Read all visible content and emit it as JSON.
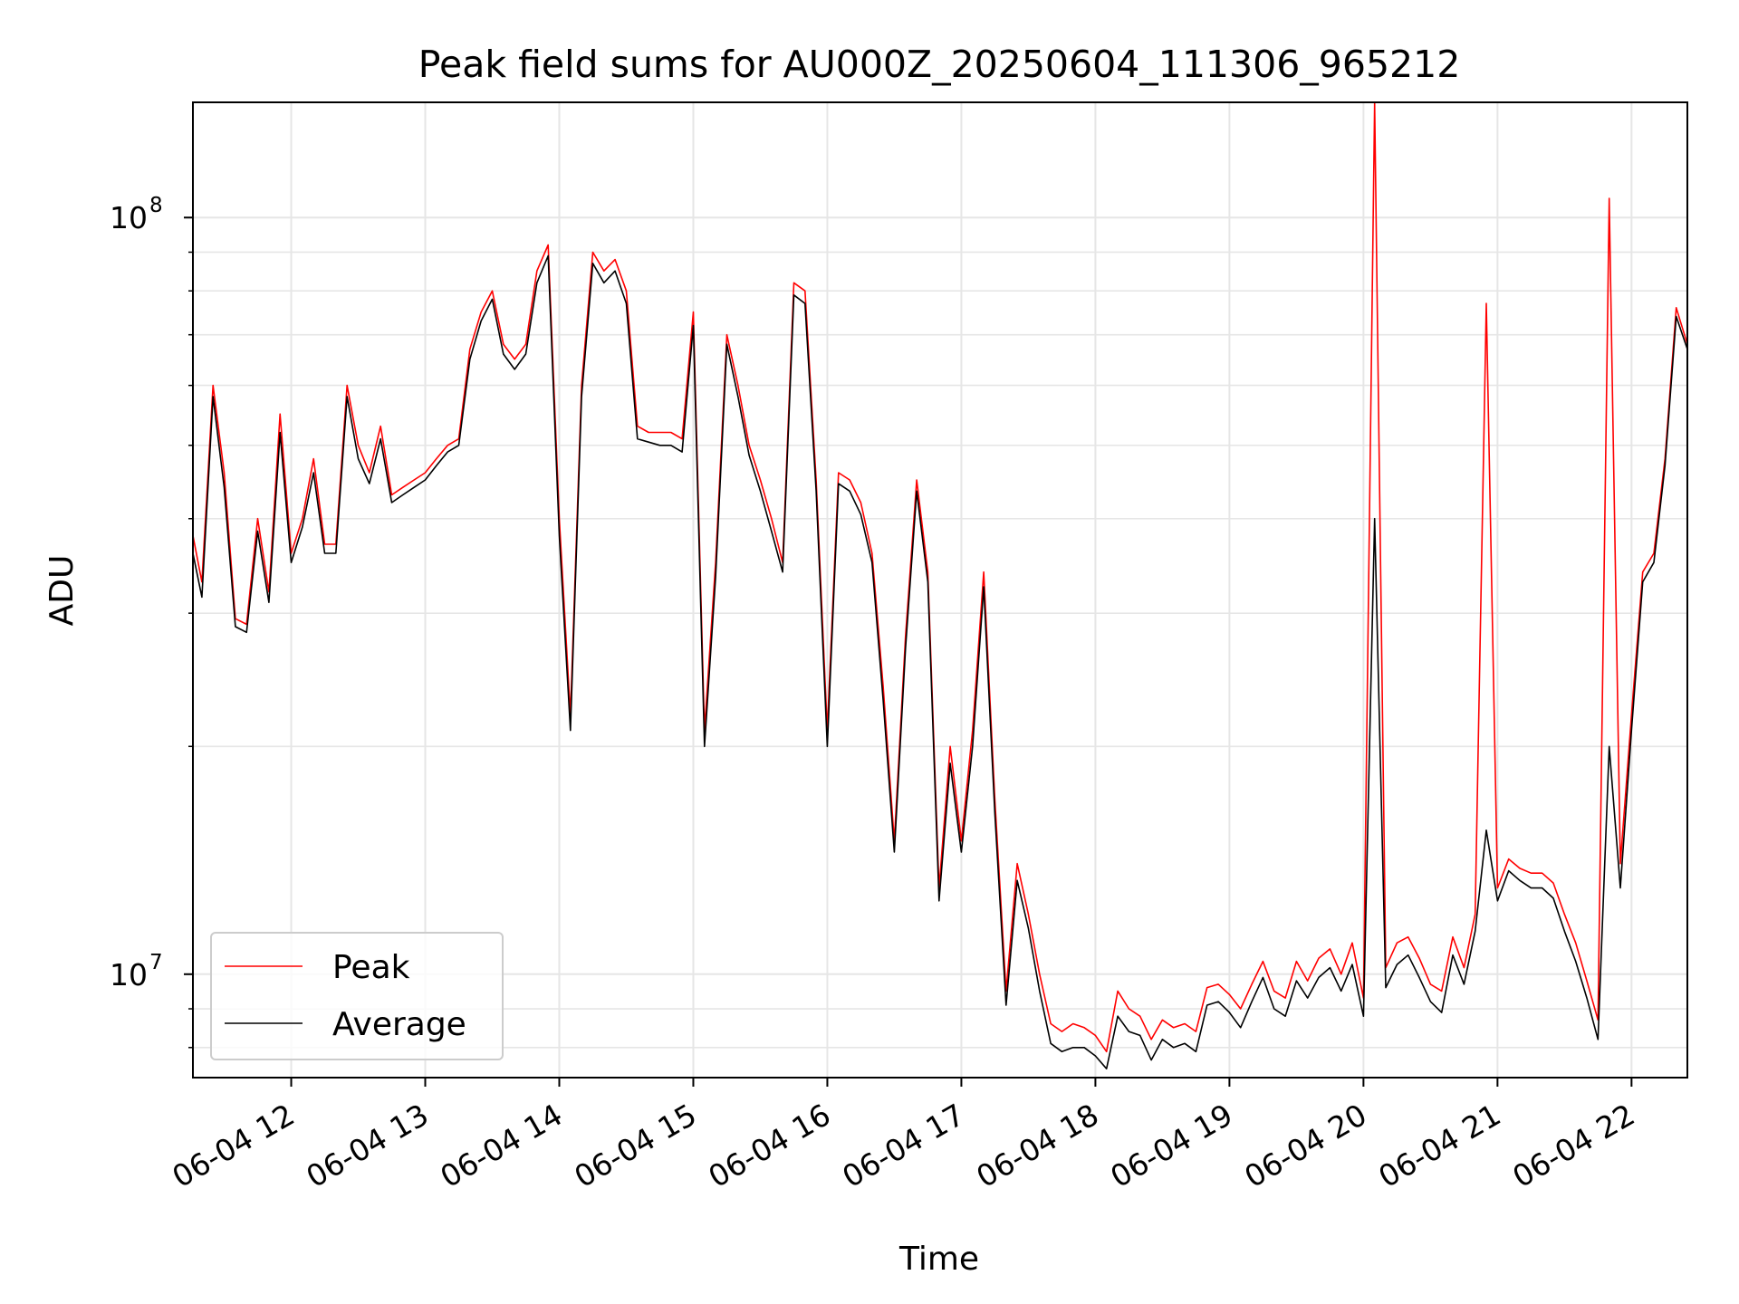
{
  "chart_data": {
    "type": "line",
    "title": "Peak field sums for AU000Z_20250604_111306_965212",
    "xlabel": "Time",
    "ylabel": "ADU",
    "yscale": "log",
    "ylim": [
      7300000,
      142000000
    ],
    "xlim": [
      "06-04 11:16",
      "06-04 22:25"
    ],
    "grid": true,
    "legend_position": "lower-left",
    "x_ticks": [
      "06-04 12",
      "06-04 13",
      "06-04 14",
      "06-04 15",
      "06-04 16",
      "06-04 17",
      "06-04 18",
      "06-04 19",
      "06-04 20",
      "06-04 21",
      "06-04 22"
    ],
    "y_ticks": [
      {
        "label": "10",
        "exp": "8",
        "value": 100000000
      },
      {
        "label": "10",
        "exp": "7",
        "value": 10000000
      }
    ],
    "colors": {
      "Peak": "#ff0000",
      "Average": "#000000"
    },
    "x": [
      "06-04 11:16",
      "06-04 11:20",
      "06-04 11:25",
      "06-04 11:30",
      "06-04 11:35",
      "06-04 11:40",
      "06-04 11:45",
      "06-04 11:50",
      "06-04 11:55",
      "06-04 12:00",
      "06-04 12:05",
      "06-04 12:10",
      "06-04 12:15",
      "06-04 12:20",
      "06-04 12:25",
      "06-04 12:30",
      "06-04 12:35",
      "06-04 12:40",
      "06-04 12:45",
      "06-04 12:50",
      "06-04 12:55",
      "06-04 13:00",
      "06-04 13:05",
      "06-04 13:10",
      "06-04 13:15",
      "06-04 13:20",
      "06-04 13:25",
      "06-04 13:30",
      "06-04 13:35",
      "06-04 13:40",
      "06-04 13:45",
      "06-04 13:50",
      "06-04 13:55",
      "06-04 14:00",
      "06-04 14:05",
      "06-04 14:10",
      "06-04 14:15",
      "06-04 14:20",
      "06-04 14:25",
      "06-04 14:30",
      "06-04 14:35",
      "06-04 14:40",
      "06-04 14:45",
      "06-04 14:50",
      "06-04 14:55",
      "06-04 15:00",
      "06-04 15:05",
      "06-04 15:10",
      "06-04 15:15",
      "06-04 15:20",
      "06-04 15:25",
      "06-04 15:30",
      "06-04 15:35",
      "06-04 15:40",
      "06-04 15:45",
      "06-04 15:50",
      "06-04 15:55",
      "06-04 16:00",
      "06-04 16:05",
      "06-04 16:10",
      "06-04 16:15",
      "06-04 16:20",
      "06-04 16:25",
      "06-04 16:30",
      "06-04 16:35",
      "06-04 16:40",
      "06-04 16:45",
      "06-04 16:50",
      "06-04 16:55",
      "06-04 17:00",
      "06-04 17:05",
      "06-04 17:10",
      "06-04 17:15",
      "06-04 17:20",
      "06-04 17:25",
      "06-04 17:30",
      "06-04 17:35",
      "06-04 17:40",
      "06-04 17:45",
      "06-04 17:50",
      "06-04 17:55",
      "06-04 18:00",
      "06-04 18:05",
      "06-04 18:10",
      "06-04 18:15",
      "06-04 18:20",
      "06-04 18:25",
      "06-04 18:30",
      "06-04 18:35",
      "06-04 18:40",
      "06-04 18:45",
      "06-04 18:50",
      "06-04 18:55",
      "06-04 19:00",
      "06-04 19:05",
      "06-04 19:10",
      "06-04 19:15",
      "06-04 19:20",
      "06-04 19:25",
      "06-04 19:30",
      "06-04 19:35",
      "06-04 19:40",
      "06-04 19:45",
      "06-04 19:50",
      "06-04 19:55",
      "06-04 20:00",
      "06-04 20:05",
      "06-04 20:10",
      "06-04 20:15",
      "06-04 20:20",
      "06-04 20:25",
      "06-04 20:30",
      "06-04 20:35",
      "06-04 20:40",
      "06-04 20:45",
      "06-04 20:50",
      "06-04 20:55",
      "06-04 21:00",
      "06-04 21:05",
      "06-04 21:10",
      "06-04 21:15",
      "06-04 21:20",
      "06-04 21:25",
      "06-04 21:30",
      "06-04 21:35",
      "06-04 21:40",
      "06-04 21:45",
      "06-04 21:50",
      "06-04 21:55",
      "06-04 22:00",
      "06-04 22:05",
      "06-04 22:10",
      "06-04 22:15",
      "06-04 22:20",
      "06-04 22:25"
    ],
    "series": [
      {
        "name": "Peak",
        "values": [
          38000000,
          33000000,
          60000000,
          46000000,
          29500000,
          29000000,
          40000000,
          32000000,
          55000000,
          36000000,
          40000000,
          48000000,
          37000000,
          37000000,
          60000000,
          50000000,
          46000000,
          53000000,
          43000000,
          44000000,
          45000000,
          46000000,
          48000000,
          50000000,
          51000000,
          67000000,
          75000000,
          80000000,
          68000000,
          65000000,
          68000000,
          85000000,
          92000000,
          40000000,
          22000000,
          60000000,
          90000000,
          85000000,
          88000000,
          80000000,
          53000000,
          52000000,
          52000000,
          52000000,
          51000000,
          75000000,
          21000000,
          35000000,
          70000000,
          60000000,
          50000000,
          45000000,
          40000000,
          35000000,
          82000000,
          80000000,
          45000000,
          21000000,
          46000000,
          45000000,
          42000000,
          36000000,
          24000000,
          15000000,
          28000000,
          45000000,
          34000000,
          13000000,
          20000000,
          15000000,
          21000000,
          34000000,
          17000000,
          9500000,
          14000000,
          12000000,
          10000000,
          8600000,
          8400000,
          8600000,
          8500000,
          8300000,
          7900000,
          9500000,
          9000000,
          8800000,
          8200000,
          8700000,
          8500000,
          8600000,
          8400000,
          9600000,
          9700000,
          9400000,
          9000000,
          9700000,
          10400000,
          9500000,
          9300000,
          10400000,
          9800000,
          10500000,
          10800000,
          10000000,
          11000000,
          9300000,
          142000000,
          10200000,
          11000000,
          11200000,
          10500000,
          9700000,
          9500000,
          11200000,
          10200000,
          12000000,
          77000000,
          13000000,
          14200000,
          13800000,
          13600000,
          13600000,
          13200000,
          12000000,
          11000000,
          9800000,
          8700000,
          106000000,
          14000000,
          22000000,
          34000000,
          36000000,
          48000000,
          76000000,
          68000000
        ]
      },
      {
        "name": "Average",
        "values": [
          36000000,
          31500000,
          58000000,
          44000000,
          28800000,
          28300000,
          38500000,
          31000000,
          52000000,
          35000000,
          39000000,
          46000000,
          36000000,
          36000000,
          58000000,
          48000000,
          44500000,
          51000000,
          42000000,
          43000000,
          44000000,
          45000000,
          47000000,
          49000000,
          50000000,
          65000000,
          73000000,
          78000000,
          66000000,
          63000000,
          66000000,
          82000000,
          89000000,
          38000000,
          21000000,
          58000000,
          87000000,
          82000000,
          85000000,
          77000000,
          51000000,
          50500000,
          50000000,
          50000000,
          49000000,
          72000000,
          20000000,
          33500000,
          68000000,
          58000000,
          48500000,
          43500000,
          38500000,
          34000000,
          79000000,
          77000000,
          43500000,
          20000000,
          44500000,
          43500000,
          40500000,
          35000000,
          23000000,
          14500000,
          27000000,
          43500000,
          33000000,
          12500000,
          19000000,
          14500000,
          20000000,
          32500000,
          16300000,
          9100000,
          13300000,
          11500000,
          9500000,
          8100000,
          7900000,
          8000000,
          8000000,
          7800000,
          7500000,
          8800000,
          8400000,
          8300000,
          7700000,
          8200000,
          8000000,
          8100000,
          7900000,
          9100000,
          9200000,
          8900000,
          8500000,
          9200000,
          9900000,
          9000000,
          8800000,
          9800000,
          9300000,
          9900000,
          10200000,
          9500000,
          10300000,
          8800000,
          40000000,
          9600000,
          10300000,
          10600000,
          9900000,
          9200000,
          8900000,
          10600000,
          9700000,
          11400000,
          15500000,
          12500000,
          13700000,
          13300000,
          13000000,
          13000000,
          12600000,
          11400000,
          10400000,
          9300000,
          8200000,
          20000000,
          13000000,
          21000000,
          33000000,
          35000000,
          47000000,
          74000000,
          67000000
        ]
      }
    ]
  }
}
